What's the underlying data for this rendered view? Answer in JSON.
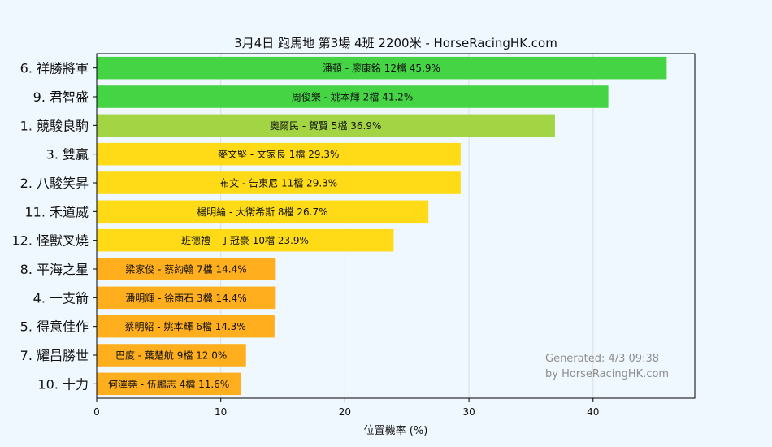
{
  "chart_data": {
    "type": "bar",
    "orientation": "horizontal",
    "title": "3月4日  跑馬地  第3場  4班  2200米 - HorseRacingHK.com",
    "xlabel": "位置機率 (%)",
    "ylabel": "",
    "xlim": [
      0,
      48.2
    ],
    "xticks": [
      0,
      10,
      20,
      30,
      40
    ],
    "grid": "vertical",
    "categories": [
      "6. 祥勝將軍",
      "9. 君智盛",
      "1. 競駿良駒",
      "3. 雙贏",
      "2. 八駿笑昇",
      "11. 禾道威",
      "12. 怪獸叉燒",
      "8. 平海之星",
      "4. 一支箭",
      "5. 得意佳作",
      "7. 耀昌勝世",
      "10. 十力"
    ],
    "values": [
      45.9,
      41.2,
      36.9,
      29.3,
      29.3,
      26.7,
      23.9,
      14.4,
      14.4,
      14.3,
      12.0,
      11.6
    ],
    "bar_labels": [
      "潘頓 - 廖康銘 12檔  45.9%",
      "周俊樂 - 姚本輝 2檔  41.2%",
      "奧爾民 - 賀賢 5檔  36.9%",
      "麥文堅 - 文家良 1檔  29.3%",
      "布文 - 告東尼 11檔  29.3%",
      "楊明綸 - 大衛希斯 8檔  26.7%",
      "班德禮 - 丁冠豪 10檔  23.9%",
      "梁家俊 - 蔡約翰 7檔  14.4%",
      "潘明輝 - 徐雨石 3檔  14.4%",
      "蔡明紹 - 姚本輝 6檔  14.3%",
      "巴度 - 葉楚航 9檔  12.0%",
      "何澤堯 - 伍鵬志 4檔  11.6%"
    ],
    "colors": [
      "#44d444",
      "#44d444",
      "#a2d443",
      "#fedb16",
      "#fedb16",
      "#fedb16",
      "#fedb16",
      "#ffae1d",
      "#ffae1d",
      "#ffae1d",
      "#ffae1d",
      "#ffae1d"
    ],
    "watermark": [
      "Generated: 4/3 09:38",
      "by HorseRacingHK.com"
    ]
  }
}
